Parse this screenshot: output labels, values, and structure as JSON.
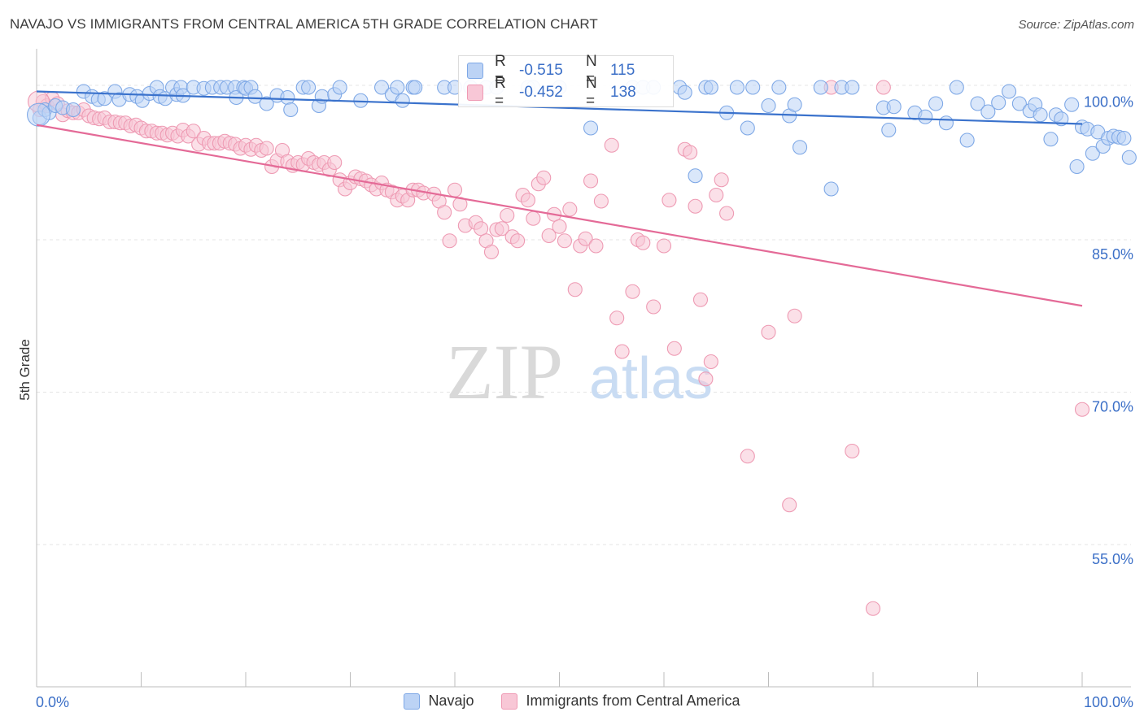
{
  "title": "NAVAJO VS IMMIGRANTS FROM CENTRAL AMERICA 5TH GRADE CORRELATION CHART",
  "source": "Source: ZipAtlas.com",
  "watermark": {
    "zip": "ZIP",
    "atlas": "atlas"
  },
  "colors": {
    "navajo": "#3a72cc",
    "navajo_fill": "#bcd3f5",
    "immigrants": "#e46a97",
    "immigrants_fill": "#f8c7d6",
    "tick_label": "#3b6fc7"
  },
  "legend_stats": [
    {
      "r_label": "R =",
      "r_value": "-0.515",
      "n_label": "N =",
      "n_value": "115"
    },
    {
      "r_label": "R =",
      "r_value": "-0.452",
      "n_label": "N =",
      "n_value": "138"
    }
  ],
  "chart_data": {
    "type": "scatter",
    "ylabel": "5th Grade",
    "xlabel": "",
    "xlim": [
      0,
      100
    ],
    "ylim": [
      41,
      103
    ],
    "x_tick_labels": [
      "0.0%",
      "100.0%"
    ],
    "y_ticks": [
      {
        "value": 100,
        "label": "100.0%"
      },
      {
        "value": 85,
        "label": "85.0%"
      },
      {
        "value": 70,
        "label": "70.0%"
      },
      {
        "value": 55,
        "label": "55.0%"
      }
    ],
    "grid": true,
    "legend": [
      "Navajo",
      "Immigrants from Central America"
    ],
    "series": [
      {
        "name": "Navajo",
        "trend": {
          "x": [
            0,
            100
          ],
          "y": [
            99.6,
            96.4
          ]
        },
        "points": [
          [
            0.3,
            97
          ],
          [
            0.8,
            97.8
          ],
          [
            1.2,
            97.5
          ],
          [
            1.8,
            98.2
          ],
          [
            2.5,
            98
          ],
          [
            3.5,
            97.8
          ],
          [
            4.5,
            99.6
          ],
          [
            5.3,
            99.1
          ],
          [
            5.9,
            98.8
          ],
          [
            6.5,
            98.9
          ],
          [
            7.5,
            99.6
          ],
          [
            7.9,
            98.8
          ],
          [
            8.9,
            99.3
          ],
          [
            9.6,
            99.1
          ],
          [
            10.1,
            98.7
          ],
          [
            10.8,
            99.4
          ],
          [
            11.5,
            100
          ],
          [
            11.8,
            99.1
          ],
          [
            12.3,
            98.9
          ],
          [
            13.0,
            100
          ],
          [
            13.4,
            99.3
          ],
          [
            13.8,
            100
          ],
          [
            14.0,
            99.2
          ],
          [
            15.0,
            100
          ],
          [
            16.0,
            99.9
          ],
          [
            16.8,
            100
          ],
          [
            17.6,
            100
          ],
          [
            18.2,
            100
          ],
          [
            19.0,
            100
          ],
          [
            19.1,
            99
          ],
          [
            19.8,
            100
          ],
          [
            20.0,
            99.9
          ],
          [
            20.5,
            100
          ],
          [
            20.9,
            99.1
          ],
          [
            22.0,
            98.4
          ],
          [
            23.0,
            99.2
          ],
          [
            24.0,
            99
          ],
          [
            24.3,
            97.8
          ],
          [
            25.5,
            100
          ],
          [
            26.0,
            100
          ],
          [
            27.0,
            98.2
          ],
          [
            27.3,
            99.1
          ],
          [
            28.5,
            99.3
          ],
          [
            29.0,
            100
          ],
          [
            31.0,
            98.7
          ],
          [
            33.0,
            100
          ],
          [
            34.0,
            99.3
          ],
          [
            34.5,
            100
          ],
          [
            35.0,
            98.7
          ],
          [
            36.0,
            100
          ],
          [
            36.2,
            100
          ],
          [
            39.0,
            100
          ],
          [
            40.0,
            100
          ],
          [
            41.5,
            100
          ],
          [
            43.0,
            100
          ],
          [
            44.0,
            100
          ],
          [
            47.0,
            100
          ],
          [
            47.5,
            100
          ],
          [
            50.0,
            100
          ],
          [
            53.0,
            96
          ],
          [
            57.0,
            100
          ],
          [
            58.0,
            100
          ],
          [
            59.0,
            100
          ],
          [
            61.5,
            100
          ],
          [
            62.0,
            99.5
          ],
          [
            63.0,
            91.3
          ],
          [
            64.0,
            100
          ],
          [
            64.5,
            100
          ],
          [
            66.0,
            97.5
          ],
          [
            67.0,
            100
          ],
          [
            68.0,
            96
          ],
          [
            68.5,
            100
          ],
          [
            70.0,
            98.2
          ],
          [
            71.0,
            100
          ],
          [
            72.0,
            97.2
          ],
          [
            72.5,
            98.3
          ],
          [
            73.0,
            94.1
          ],
          [
            75.0,
            100
          ],
          [
            76.0,
            90
          ],
          [
            77.0,
            100
          ],
          [
            78.0,
            100
          ],
          [
            81.0,
            98
          ],
          [
            81.5,
            95.8
          ],
          [
            82.0,
            98.1
          ],
          [
            84.0,
            97.5
          ],
          [
            85.0,
            97.1
          ],
          [
            86.0,
            98.4
          ],
          [
            87.0,
            96.5
          ],
          [
            88.0,
            100
          ],
          [
            89.0,
            94.8
          ],
          [
            90.0,
            98.4
          ],
          [
            91.0,
            97.6
          ],
          [
            92.0,
            98.5
          ],
          [
            93.0,
            99.6
          ],
          [
            94.0,
            98.4
          ],
          [
            95.0,
            97.7
          ],
          [
            95.5,
            98.3
          ],
          [
            96.0,
            97.3
          ],
          [
            97.0,
            94.9
          ],
          [
            97.5,
            97.3
          ],
          [
            98.0,
            96.9
          ],
          [
            99.0,
            98.3
          ],
          [
            99.5,
            92.2
          ],
          [
            100.0,
            96.1
          ],
          [
            100.5,
            95.9
          ],
          [
            101.0,
            93.5
          ],
          [
            101.5,
            95.6
          ],
          [
            102.0,
            94.2
          ],
          [
            102.5,
            95
          ],
          [
            103.0,
            95.2
          ],
          [
            103.5,
            95.1
          ],
          [
            104.0,
            95
          ],
          [
            104.5,
            93.1
          ]
        ]
      },
      {
        "name": "Immigrants from Central America",
        "trend": {
          "x": [
            0,
            100
          ],
          "y": [
            96.3,
            78.5
          ]
        },
        "points": [
          [
            0.3,
            97.8
          ],
          [
            0.6,
            98.6
          ],
          [
            1,
            98.2
          ],
          [
            1.5,
            98.9
          ],
          [
            2,
            98.4
          ],
          [
            2.5,
            97.3
          ],
          [
            3,
            97.7
          ],
          [
            3.5,
            97.5
          ],
          [
            4,
            97.5
          ],
          [
            4.5,
            97.8
          ],
          [
            5,
            97.2
          ],
          [
            5.5,
            97
          ],
          [
            6,
            96.9
          ],
          [
            6.5,
            97
          ],
          [
            7,
            96.6
          ],
          [
            7.5,
            96.6
          ],
          [
            8,
            96.5
          ],
          [
            8.5,
            96.5
          ],
          [
            9,
            96.2
          ],
          [
            9.5,
            96.3
          ],
          [
            10,
            96
          ],
          [
            10.5,
            95.7
          ],
          [
            11,
            95.7
          ],
          [
            11.5,
            95.5
          ],
          [
            12,
            95.5
          ],
          [
            12.5,
            95.3
          ],
          [
            13,
            95.5
          ],
          [
            13.5,
            95.2
          ],
          [
            14,
            95.8
          ],
          [
            14.5,
            95.2
          ],
          [
            15,
            95.7
          ],
          [
            15.5,
            94.4
          ],
          [
            16,
            95
          ],
          [
            16.5,
            94.5
          ],
          [
            17,
            94.5
          ],
          [
            17.5,
            94.5
          ],
          [
            18,
            94.7
          ],
          [
            18.5,
            94.5
          ],
          [
            19,
            94.4
          ],
          [
            19.5,
            94
          ],
          [
            20,
            94.3
          ],
          [
            20.5,
            93.9
          ],
          [
            21,
            94.3
          ],
          [
            21.5,
            93.8
          ],
          [
            22,
            94
          ],
          [
            22.5,
            92.2
          ],
          [
            23,
            92.8
          ],
          [
            23.5,
            93.8
          ],
          [
            24,
            92.7
          ],
          [
            24.5,
            92.3
          ],
          [
            25,
            92.6
          ],
          [
            25.5,
            92.4
          ],
          [
            26,
            93
          ],
          [
            26.5,
            92.6
          ],
          [
            27,
            92.4
          ],
          [
            27.5,
            92.6
          ],
          [
            28,
            91.9
          ],
          [
            28.5,
            92.6
          ],
          [
            29,
            90.9
          ],
          [
            29.5,
            90
          ],
          [
            30,
            90.6
          ],
          [
            30.5,
            91.2
          ],
          [
            31,
            91
          ],
          [
            31.5,
            90.8
          ],
          [
            32,
            90.4
          ],
          [
            32.5,
            90
          ],
          [
            33,
            90.6
          ],
          [
            33.5,
            89.9
          ],
          [
            34,
            89.7
          ],
          [
            34.5,
            88.9
          ],
          [
            35,
            89.3
          ],
          [
            35.5,
            88.9
          ],
          [
            36,
            89.9
          ],
          [
            36.5,
            89.9
          ],
          [
            37,
            89.6
          ],
          [
            38,
            89.5
          ],
          [
            38.5,
            88.8
          ],
          [
            39,
            87.7
          ],
          [
            39.5,
            84.9
          ],
          [
            40,
            89.9
          ],
          [
            40.5,
            88.5
          ],
          [
            41,
            86.4
          ],
          [
            42,
            86.7
          ],
          [
            42.5,
            86.1
          ],
          [
            43,
            84.9
          ],
          [
            43.5,
            83.8
          ],
          [
            44,
            86
          ],
          [
            44.5,
            86.1
          ],
          [
            45,
            87.4
          ],
          [
            45.5,
            85.3
          ],
          [
            46,
            84.9
          ],
          [
            46.5,
            89.4
          ],
          [
            47,
            88.9
          ],
          [
            47.5,
            87.1
          ],
          [
            48,
            90.5
          ],
          [
            48.5,
            91.1
          ],
          [
            49,
            85.4
          ],
          [
            49.5,
            87.5
          ],
          [
            50,
            86.3
          ],
          [
            50.5,
            84.9
          ],
          [
            51,
            88
          ],
          [
            51.5,
            80.1
          ],
          [
            52,
            84.4
          ],
          [
            52.5,
            85.1
          ],
          [
            53,
            90.8
          ],
          [
            53.5,
            84.4
          ],
          [
            54,
            88.8
          ],
          [
            55,
            94.3
          ],
          [
            55.5,
            77.3
          ],
          [
            56,
            74
          ],
          [
            57,
            79.9
          ],
          [
            57.5,
            85
          ],
          [
            58,
            84.7
          ],
          [
            59,
            78.4
          ],
          [
            60,
            84.4
          ],
          [
            60.5,
            88.9
          ],
          [
            61,
            74.3
          ],
          [
            62,
            93.9
          ],
          [
            62.5,
            93.6
          ],
          [
            63,
            88.3
          ],
          [
            63.5,
            79.1
          ],
          [
            64,
            71.3
          ],
          [
            64.5,
            73
          ],
          [
            65,
            89.4
          ],
          [
            65.5,
            90.9
          ],
          [
            66,
            87.6
          ],
          [
            68,
            63.7
          ],
          [
            70,
            75.9
          ],
          [
            72,
            58.9
          ],
          [
            72.5,
            77.5
          ],
          [
            76,
            100
          ],
          [
            78,
            64.2
          ],
          [
            80,
            48.7
          ],
          [
            81,
            100
          ],
          [
            100,
            68.3
          ]
        ]
      }
    ]
  }
}
